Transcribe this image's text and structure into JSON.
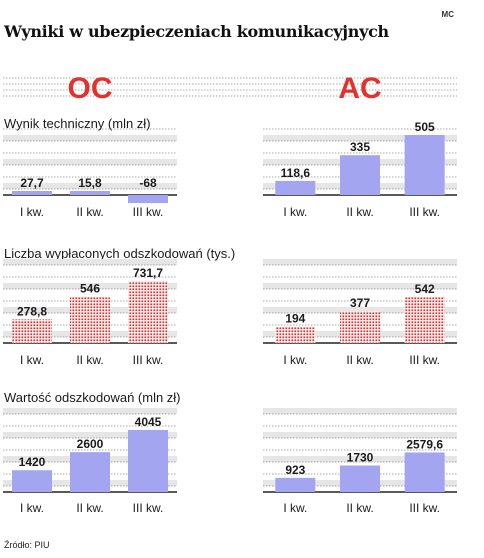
{
  "credit": "MC",
  "title": "Wyniki w ubezpieczeniach komunikacyjnych",
  "source": "Źródło: PIU",
  "colors": {
    "header_red": "#e3312d",
    "bar_blue": "#a4a5f0",
    "bar_red_dots": "#e3312d",
    "baseline": "#222222",
    "grid": "#555555",
    "zebra": "#e6e6e6"
  },
  "chart_data": [
    {
      "type": "bar",
      "title": "Wynik techniczny (mln zł)",
      "groups": [
        {
          "name": "OC",
          "categories": [
            "I kw.",
            "II kw.",
            "III kw."
          ],
          "values": [
            27.7,
            15.8,
            -68
          ],
          "labels": [
            "27,7",
            "15,8",
            "-68"
          ]
        },
        {
          "name": "AC",
          "categories": [
            "I kw.",
            "II kw.",
            "III kw."
          ],
          "values": [
            118.6,
            335,
            505
          ],
          "labels": [
            "118,6",
            "335",
            "505"
          ]
        }
      ],
      "style": "solid-blue"
    },
    {
      "type": "bar",
      "title": "Liczba wypłaconych odszkodowań (tys.)",
      "groups": [
        {
          "name": "OC",
          "categories": [
            "I kw.",
            "II kw.",
            "III kw."
          ],
          "values": [
            278.8,
            546,
            731.7
          ],
          "labels": [
            "278,8",
            "546",
            "731,7"
          ]
        },
        {
          "name": "AC",
          "categories": [
            "I kw.",
            "II kw.",
            "III kw."
          ],
          "values": [
            194,
            377,
            542
          ],
          "labels": [
            "194",
            "377",
            "542"
          ]
        }
      ],
      "style": "dotted-red"
    },
    {
      "type": "bar",
      "title": "Wartość odszkodowań (mln zł)",
      "groups": [
        {
          "name": "OC",
          "categories": [
            "I kw.",
            "II kw.",
            "III kw."
          ],
          "values": [
            1420,
            2600,
            4045
          ],
          "labels": [
            "1420",
            "2600",
            "4045"
          ]
        },
        {
          "name": "AC",
          "categories": [
            "I kw.",
            "II kw.",
            "III kw."
          ],
          "values": [
            923,
            1730,
            2579.6
          ],
          "labels": [
            "923",
            "1730",
            "2579,6"
          ]
        }
      ],
      "style": "solid-blue"
    }
  ]
}
